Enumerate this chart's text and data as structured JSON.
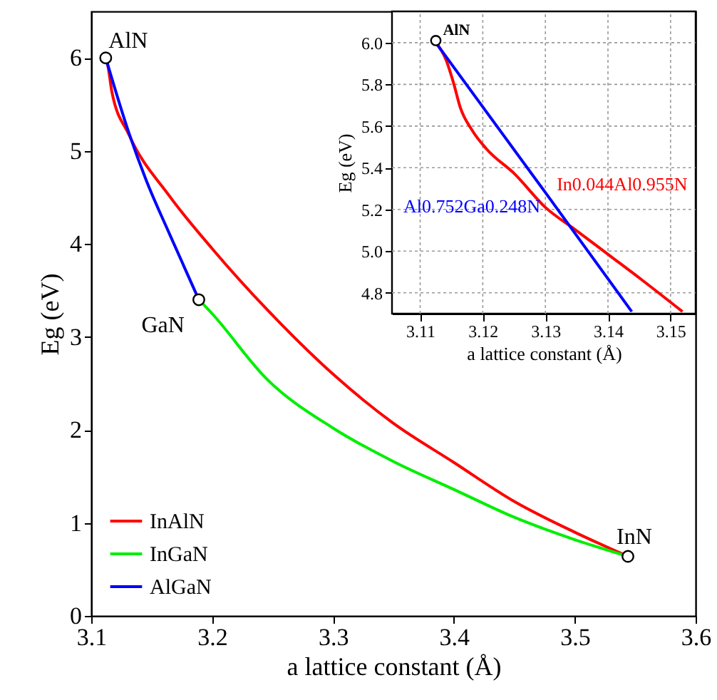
{
  "chart_data": [
    {
      "type": "line",
      "xlabel": "a lattice constant (Å)",
      "ylabel": "Eg (eV)",
      "xlim": [
        3.1,
        3.6
      ],
      "ylim": [
        0,
        6.5
      ],
      "xticks": [
        3.1,
        3.2,
        3.3,
        3.4,
        3.5,
        3.6
      ],
      "yticks": [
        0,
        1,
        2,
        3,
        4,
        5,
        6
      ],
      "grid": false,
      "legend": "bottom left",
      "line_style": "solid",
      "series": [
        {
          "name": "InAlN",
          "color": "#ff0000",
          "x": [
            3.112,
            3.114,
            3.117,
            3.131,
            3.165,
            3.2,
            3.245,
            3.3,
            3.349,
            3.4,
            3.45,
            3.5,
            3.544
          ],
          "values": [
            6.0,
            5.9,
            5.64,
            5.18,
            4.51,
            3.95,
            3.3,
            2.6,
            2.08,
            1.65,
            1.23,
            0.9,
            0.64
          ]
        },
        {
          "name": "InGaN",
          "color": "#00ee00",
          "x": [
            3.189,
            3.2,
            3.245,
            3.3,
            3.35,
            3.4,
            3.45,
            3.5,
            3.544
          ],
          "values": [
            3.4,
            3.25,
            2.55,
            2.02,
            1.66,
            1.36,
            1.06,
            0.82,
            0.64
          ]
        },
        {
          "name": "AlGaN",
          "color": "#0000ff",
          "x": [
            3.112,
            3.131,
            3.145,
            3.165,
            3.189
          ],
          "values": [
            6.0,
            5.2,
            4.7,
            4.1,
            3.4
          ]
        },
        {
          "type": "scatter",
          "marker": "circle",
          "color": "#000000",
          "x": [
            3.112,
            3.189,
            3.544
          ],
          "values": [
            6.0,
            3.4,
            0.64
          ]
        }
      ],
      "annotations": [
        {
          "text": "AlN",
          "x": 3.112,
          "y": 6.0
        },
        {
          "text": "GaN",
          "x": 3.189,
          "y": 3.4
        },
        {
          "text": "InN",
          "x": 3.544,
          "y": 0.64
        }
      ]
    },
    {
      "type": "line",
      "xlabel": "a lattice constant (Å)",
      "ylabel": "Eg (eV)",
      "xlim": [
        3.1055,
        3.154
      ],
      "ylim": [
        4.7,
        6.15
      ],
      "xticks": [
        3.11,
        3.12,
        3.13,
        3.14,
        3.15
      ],
      "yticks": [
        4.8,
        {
          "value": 5,
          "label": "5.0"
        },
        5.2,
        5.4,
        5.6,
        5.8,
        {
          "value": 6,
          "label": "6.0"
        }
      ],
      "grid": true,
      "line_style": "solid",
      "series": [
        {
          "name": "In0.044Al0.955N",
          "color": "#ff0000",
          "x": [
            3.1125,
            3.1141,
            3.1153,
            3.1164,
            3.1183,
            3.1206,
            3.1251,
            3.13,
            3.1349,
            3.1402,
            3.1455,
            3.1519
          ],
          "values": [
            6.0,
            5.92,
            5.81,
            5.69,
            5.58,
            5.49,
            5.37,
            5.21,
            5.1,
            4.98,
            4.86,
            4.71
          ]
        },
        {
          "name": "Al0.752Ga0.248N",
          "color": "#0000ff",
          "x": [
            3.1125,
            3.131,
            3.1438
          ],
          "values": [
            6.0,
            5.24,
            4.71
          ]
        },
        {
          "type": "scatter",
          "marker": "circle",
          "color": "#000000",
          "x": [
            3.1125
          ],
          "values": [
            6.01
          ]
        }
      ],
      "annotations": [
        {
          "text": "AlN",
          "x": 3.1125,
          "y": 6.01
        }
      ]
    }
  ]
}
